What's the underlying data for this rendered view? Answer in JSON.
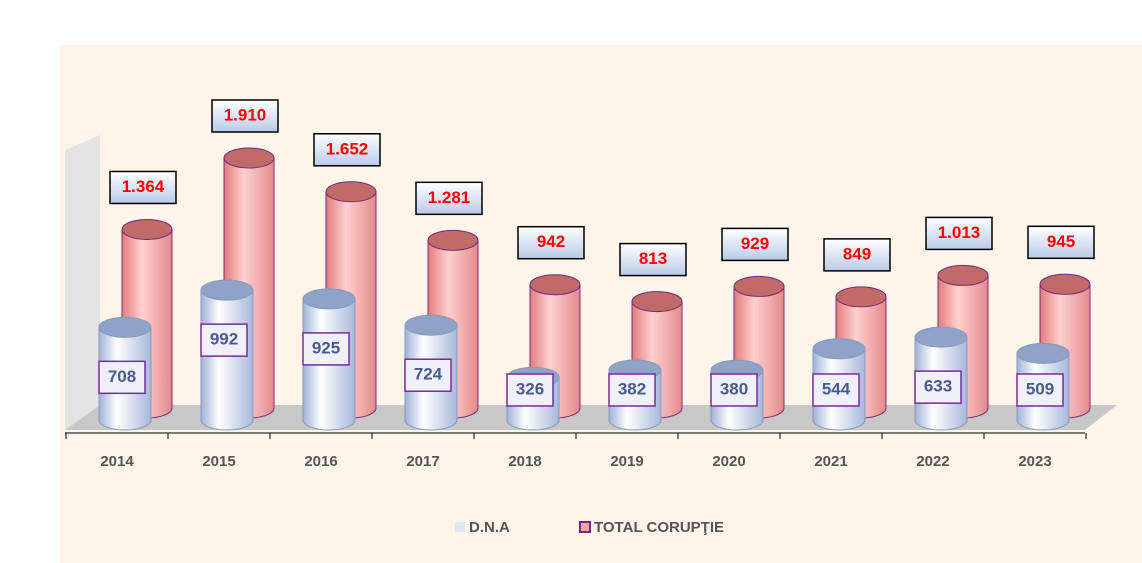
{
  "chart_data": {
    "type": "bar",
    "categories": [
      "2014",
      "2015",
      "2016",
      "2017",
      "2018",
      "2019",
      "2020",
      "2021",
      "2022",
      "2023"
    ],
    "series": [
      {
        "name": "D.N.A",
        "color": "#dfe8f7",
        "values": [
          708,
          992,
          925,
          724,
          326,
          382,
          380,
          544,
          633,
          509
        ]
      },
      {
        "name": "TOTAL CORUPŢIE",
        "color": "#f4a3a3",
        "values": [
          1364,
          1910,
          1652,
          1281,
          942,
          813,
          929,
          849,
          1013,
          945
        ],
        "value_labels": [
          "1.364",
          "1.910",
          "1.652",
          "1.281",
          "942",
          "813",
          "929",
          "849",
          "1.013",
          "945"
        ]
      }
    ],
    "legend": "bottom"
  }
}
